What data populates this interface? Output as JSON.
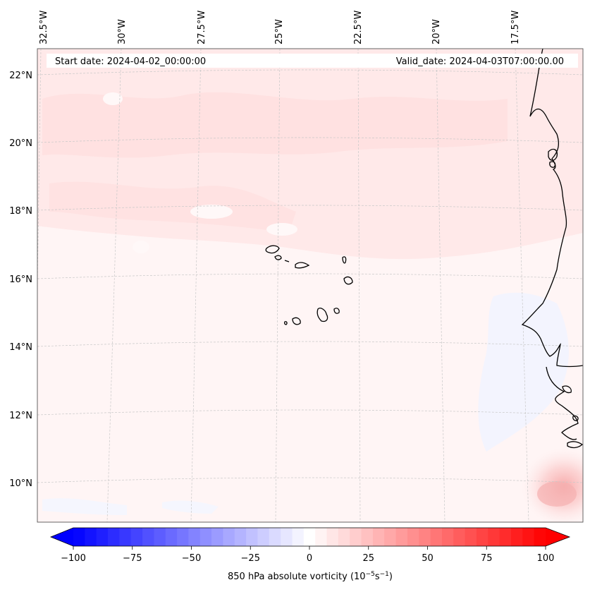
{
  "header": {
    "start_date": "Start date: 2024-04-02_00:00:00",
    "valid_date": "Valid_date: 2024-04-03T07:00:00.00"
  },
  "map": {
    "lon_labels": [
      "32.5°W",
      "30°W",
      "27.5°W",
      "25°W",
      "22.5°W",
      "20°W",
      "17.5°W"
    ],
    "lat_labels": [
      "22°N",
      "20°N",
      "18°N",
      "16°N",
      "14°N",
      "12°N",
      "10°N"
    ],
    "field": "850 hPa absolute vorticity",
    "palette": {
      "negative": "#0000ff",
      "neutral": "#ffffff",
      "positive": "#ff0000",
      "coast": "#000000",
      "grid": "#c8c8c8"
    }
  },
  "colorbar": {
    "ticks": [
      "−100",
      "−75",
      "−50",
      "−25",
      "0",
      "25",
      "50",
      "75",
      "100"
    ],
    "label_main": "850 hPa absolute vorticity (10",
    "exp1": "−5",
    "label_mid": "s",
    "exp2": "−1",
    "label_end": ")",
    "range": [
      -100,
      100
    ],
    "levels": 41
  }
}
